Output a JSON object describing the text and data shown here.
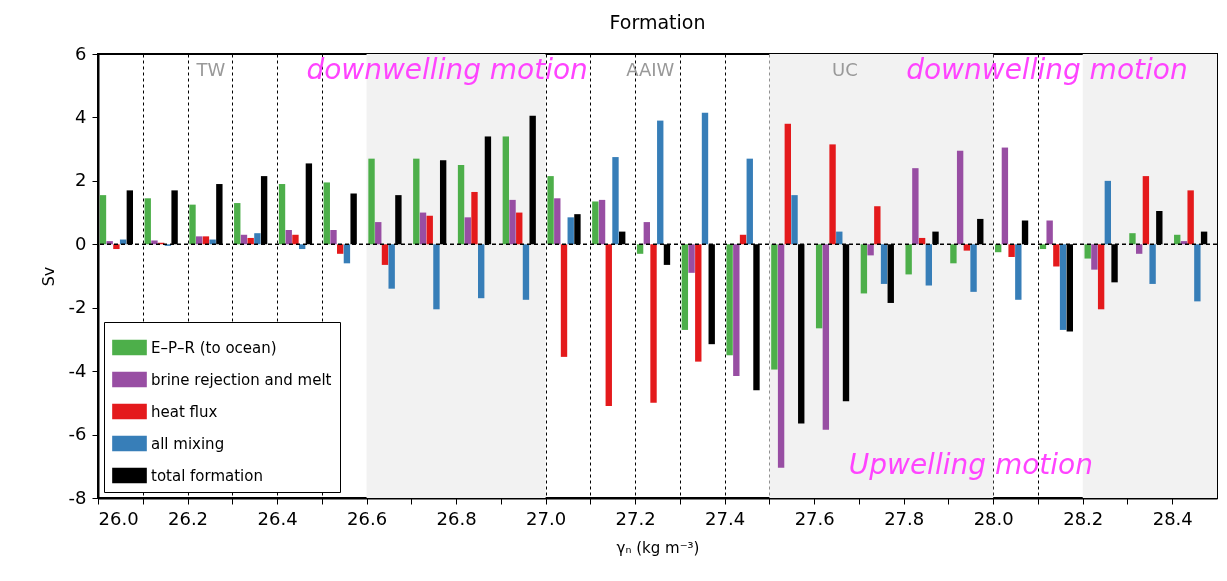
{
  "chart_data": {
    "type": "bar",
    "title": "Formation",
    "xlabel": "γₙ (kg m⁻³)",
    "ylabel": "Sv",
    "x": [
      26.05,
      26.15,
      26.25,
      26.35,
      26.45,
      26.55,
      26.65,
      26.75,
      26.85,
      26.95,
      27.05,
      27.15,
      27.25,
      27.35,
      27.45,
      27.55,
      27.65,
      27.75,
      27.85,
      27.95,
      28.05,
      28.15,
      28.25,
      28.35,
      28.45
    ],
    "series": [
      {
        "name": "E–P–R (to ocean)",
        "color": "#4daf4a",
        "values": [
          1.55,
          1.45,
          1.25,
          1.3,
          1.9,
          1.95,
          2.7,
          2.7,
          2.5,
          3.4,
          2.15,
          1.35,
          -0.3,
          -2.7,
          -3.5,
          -3.95,
          -2.65,
          -1.55,
          -0.95,
          -0.6,
          -0.25,
          -0.15,
          -0.45,
          0.35,
          0.3
        ]
      },
      {
        "name": "brine rejection and melt",
        "color": "#984ea3",
        "values": [
          0.1,
          0.12,
          0.25,
          0.3,
          0.45,
          0.45,
          0.7,
          1.0,
          0.85,
          1.4,
          1.45,
          1.4,
          0.7,
          -0.9,
          -4.15,
          -7.05,
          -5.85,
          -0.35,
          2.4,
          2.95,
          3.05,
          0.75,
          -0.8,
          -0.3,
          0.1
        ]
      },
      {
        "name": "heat flux",
        "color": "#e41a1c",
        "values": [
          -0.15,
          0.05,
          0.25,
          0.2,
          0.3,
          -0.3,
          -0.65,
          0.9,
          1.65,
          1.0,
          -3.55,
          -5.1,
          -5.0,
          -3.7,
          0.3,
          3.8,
          3.15,
          1.2,
          0.2,
          -0.2,
          -0.4,
          -0.7,
          -2.05,
          2.15,
          1.7
        ]
      },
      {
        "name": "all mixing",
        "color": "#377eb8",
        "values": [
          0.15,
          -0.05,
          0.15,
          0.35,
          -0.15,
          -0.6,
          -1.4,
          -2.05,
          -1.7,
          -1.75,
          0.85,
          2.75,
          3.9,
          4.15,
          2.7,
          1.55,
          0.4,
          -1.25,
          -1.3,
          -1.5,
          -1.75,
          -2.7,
          2.0,
          -1.25,
          -1.8
        ]
      },
      {
        "name": "total formation",
        "color": "#000000",
        "values": [
          1.7,
          1.7,
          1.9,
          2.15,
          2.55,
          1.6,
          1.55,
          2.65,
          3.4,
          4.05,
          0.95,
          0.4,
          -0.65,
          -3.15,
          -4.6,
          -5.65,
          -4.95,
          -1.85,
          0.4,
          0.8,
          0.75,
          -2.75,
          -1.2,
          1.05,
          0.4
        ]
      }
    ],
    "xlim": [
      26.0,
      28.5
    ],
    "xticks": [
      {
        "value": 26.0,
        "label": "26.0"
      },
      {
        "value": 26.1,
        "label": null
      },
      {
        "value": 26.2,
        "label": "26.2"
      },
      {
        "value": 26.3,
        "label": null
      },
      {
        "value": 26.4,
        "label": "26.4"
      },
      {
        "value": 26.5,
        "label": null
      },
      {
        "value": 26.6,
        "label": "26.6"
      },
      {
        "value": 26.7,
        "label": null
      },
      {
        "value": 26.8,
        "label": "26.8"
      },
      {
        "value": 26.9,
        "label": null
      },
      {
        "value": 27.0,
        "label": "27.0"
      },
      {
        "value": 27.1,
        "label": null
      },
      {
        "value": 27.2,
        "label": "27.2"
      },
      {
        "value": 27.3,
        "label": null
      },
      {
        "value": 27.4,
        "label": "27.4"
      },
      {
        "value": 27.5,
        "label": null
      },
      {
        "value": 27.6,
        "label": "27.6"
      },
      {
        "value": 27.7,
        "label": null
      },
      {
        "value": 27.8,
        "label": "27.8"
      },
      {
        "value": 27.9,
        "label": null
      },
      {
        "value": 28.0,
        "label": "28.0"
      },
      {
        "value": 28.1,
        "label": null
      },
      {
        "value": 28.2,
        "label": "28.2"
      },
      {
        "value": 28.3,
        "label": null
      },
      {
        "value": 28.4,
        "label": "28.4"
      }
    ],
    "ylim": [
      -8,
      6
    ],
    "yticks": [
      -8,
      -6,
      -4,
      -2,
      0,
      2,
      4,
      6
    ],
    "grid": "x",
    "legend": "bottom left",
    "ref_lines": [
      {
        "axis": "y",
        "value": 0,
        "line_style": "dashed",
        "color": "#000000"
      }
    ],
    "bands": [
      {
        "axis": "x",
        "from": 26.6,
        "to": 27.0,
        "color": "#f2f2f2"
      },
      {
        "axis": "x",
        "from": 27.5,
        "to": 28.0,
        "color": "#f2f2f2"
      },
      {
        "axis": "x",
        "from": 28.2,
        "to": 28.5,
        "color": "#f2f2f2"
      }
    ],
    "annotations": [
      "TW",
      "downwelling motion",
      "AAIW",
      "UC",
      "downwelling motion",
      "Upwelling motion"
    ]
  }
}
